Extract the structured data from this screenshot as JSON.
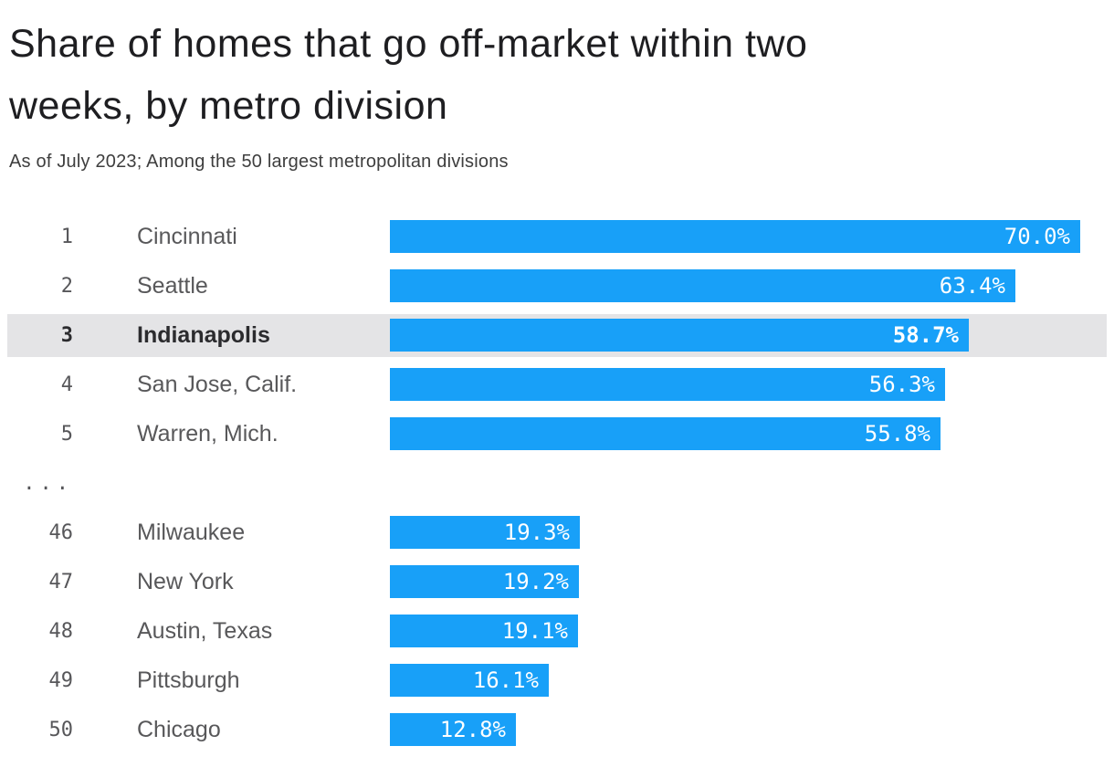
{
  "chart_data": {
    "type": "bar",
    "orientation": "horizontal",
    "title": "Share of homes that go off-market within two weeks, by metro division",
    "subtitle": "As of July 2023; Among the 50 largest metropolitan divisions",
    "value_suffix": "%",
    "xlim": [
      0,
      70
    ],
    "grid": false,
    "legend": false,
    "bar_color": "#18a0f8",
    "highlight_band_color": "#e4e4e6",
    "ellipsis_label": "...",
    "rows": [
      {
        "rank": "1",
        "city": "Cincinnati",
        "value": 70.0,
        "label": "70.0%",
        "highlighted": false
      },
      {
        "rank": "2",
        "city": "Seattle",
        "value": 63.4,
        "label": "63.4%",
        "highlighted": false
      },
      {
        "rank": "3",
        "city": "Indianapolis",
        "value": 58.7,
        "label": "58.7%",
        "highlighted": true
      },
      {
        "rank": "4",
        "city": "San Jose, Calif.",
        "value": 56.3,
        "label": "56.3%",
        "highlighted": false
      },
      {
        "rank": "5",
        "city": "Warren, Mich.",
        "value": 55.8,
        "label": "55.8%",
        "highlighted": false
      },
      {
        "type": "ellipsis"
      },
      {
        "rank": "46",
        "city": "Milwaukee",
        "value": 19.3,
        "label": "19.3%",
        "highlighted": false
      },
      {
        "rank": "47",
        "city": "New York",
        "value": 19.2,
        "label": "19.2%",
        "highlighted": false
      },
      {
        "rank": "48",
        "city": "Austin, Texas",
        "value": 19.1,
        "label": "19.1%",
        "highlighted": false
      },
      {
        "rank": "49",
        "city": "Pittsburgh",
        "value": 16.1,
        "label": "16.1%",
        "highlighted": false
      },
      {
        "rank": "50",
        "city": "Chicago",
        "value": 12.8,
        "label": "12.8%",
        "highlighted": false
      }
    ]
  }
}
